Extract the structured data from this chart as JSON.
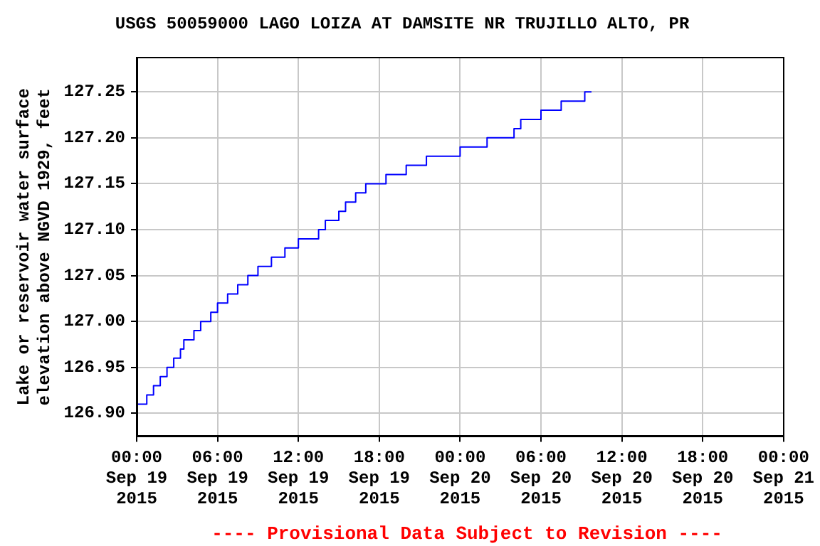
{
  "chart_data": {
    "type": "step",
    "title": "USGS 50059000 LAGO LOIZA AT DAMSITE NR TRUJILLO ALTO, PR",
    "ylabel": "Lake or reservoir water surface\nelevation above NGVD 1929, feet",
    "x": [
      "2015-09-19T00:00",
      "2015-09-19T00:45",
      "2015-09-19T01:15",
      "2015-09-19T01:45",
      "2015-09-19T02:15",
      "2015-09-19T02:45",
      "2015-09-19T03:15",
      "2015-09-19T03:30",
      "2015-09-19T04:15",
      "2015-09-19T04:45",
      "2015-09-19T05:30",
      "2015-09-19T06:00",
      "2015-09-19T06:45",
      "2015-09-19T07:30",
      "2015-09-19T08:15",
      "2015-09-19T09:00",
      "2015-09-19T10:00",
      "2015-09-19T11:00",
      "2015-09-19T12:00",
      "2015-09-19T13:30",
      "2015-09-19T14:00",
      "2015-09-19T15:00",
      "2015-09-19T15:30",
      "2015-09-19T16:15",
      "2015-09-19T17:00",
      "2015-09-19T18:30",
      "2015-09-19T20:00",
      "2015-09-19T21:30",
      "2015-09-19T22:15",
      "2015-09-20T00:00",
      "2015-09-20T02:00",
      "2015-09-20T04:00",
      "2015-09-20T04:30",
      "2015-09-20T06:00",
      "2015-09-20T07:30",
      "2015-09-20T09:15",
      "2015-09-20T09:45"
    ],
    "series": [
      {
        "color": "#0000ff",
        "values": [
          126.91,
          126.92,
          126.93,
          126.94,
          126.95,
          126.96,
          126.97,
          126.98,
          126.99,
          127.0,
          127.01,
          127.02,
          127.03,
          127.04,
          127.05,
          127.06,
          127.07,
          127.08,
          127.09,
          127.1,
          127.11,
          127.12,
          127.13,
          127.14,
          127.15,
          127.16,
          127.17,
          127.18,
          127.18,
          127.19,
          127.2,
          127.21,
          127.22,
          127.23,
          127.24,
          127.25,
          127.25
        ]
      }
    ],
    "xlim": [
      "2015-09-19T00:00",
      "2015-09-21T00:00"
    ],
    "xticks": [
      {
        "value": "2015-09-19T00:00",
        "label": "00:00\nSep 19\n2015"
      },
      {
        "value": "2015-09-19T06:00",
        "label": "06:00\nSep 19\n2015"
      },
      {
        "value": "2015-09-19T12:00",
        "label": "12:00\nSep 19\n2015"
      },
      {
        "value": "2015-09-19T18:00",
        "label": "18:00\nSep 19\n2015"
      },
      {
        "value": "2015-09-20T00:00",
        "label": "00:00\nSep 20\n2015"
      },
      {
        "value": "2015-09-20T06:00",
        "label": "06:00\nSep 20\n2015"
      },
      {
        "value": "2015-09-20T12:00",
        "label": "12:00\nSep 20\n2015"
      },
      {
        "value": "2015-09-20T18:00",
        "label": "18:00\nSep 20\n2015"
      },
      {
        "value": "2015-09-21T00:00",
        "label": "00:00\nSep 21\n2015"
      }
    ],
    "ylim": [
      126.875,
      127.2875
    ],
    "yticks": [
      {
        "value": 126.9,
        "label": "126.90"
      },
      {
        "value": 126.95,
        "label": "126.95"
      },
      {
        "value": 127.0,
        "label": "127.00"
      },
      {
        "value": 127.05,
        "label": "127.05"
      },
      {
        "value": 127.1,
        "label": "127.10"
      },
      {
        "value": 127.15,
        "label": "127.15"
      },
      {
        "value": 127.2,
        "label": "127.20"
      },
      {
        "value": 127.25,
        "label": "127.25"
      }
    ],
    "grid": true,
    "legend": false,
    "marker": "none",
    "line_style": "solid",
    "annotations": [
      "---- Provisional Data Subject to Revision ----"
    ]
  }
}
